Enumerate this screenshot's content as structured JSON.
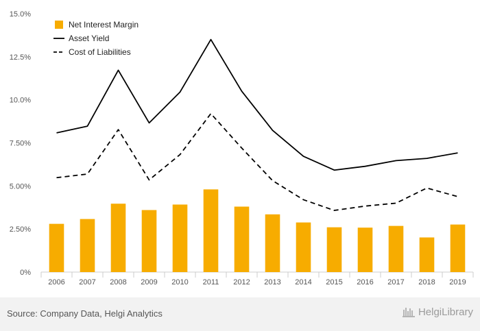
{
  "chart_data": {
    "type": "bar",
    "categories": [
      "2006",
      "2007",
      "2008",
      "2009",
      "2010",
      "2011",
      "2012",
      "2013",
      "2014",
      "2015",
      "2016",
      "2017",
      "2018",
      "2019"
    ],
    "series": [
      {
        "name": "Net Interest Margin",
        "kind": "bar",
        "color": "#f7ac00",
        "values": [
          2.8,
          3.08,
          3.97,
          3.6,
          3.92,
          4.8,
          3.8,
          3.35,
          2.88,
          2.6,
          2.58,
          2.68,
          2.01,
          2.76
        ]
      },
      {
        "name": "Asset Yield",
        "kind": "line",
        "style": "solid",
        "color": "#000000",
        "values": [
          8.08,
          8.47,
          11.72,
          8.66,
          10.45,
          13.5,
          10.5,
          8.23,
          6.72,
          5.92,
          6.14,
          6.47,
          6.6,
          6.92
        ]
      },
      {
        "name": "Cost of Liabilities",
        "kind": "line",
        "style": "dashed",
        "color": "#000000",
        "values": [
          5.48,
          5.69,
          8.27,
          5.35,
          6.82,
          9.2,
          7.2,
          5.31,
          4.2,
          3.58,
          3.83,
          4.0,
          4.88,
          4.38
        ]
      }
    ],
    "yticks": [
      "0%",
      "2.50%",
      "5.00%",
      "7.50%",
      "10.0%",
      "12.5%",
      "15.0%"
    ],
    "ytick_values": [
      0,
      2.5,
      5,
      7.5,
      10,
      12.5,
      15
    ],
    "ylim": [
      0,
      15
    ],
    "legend_position": "top-left",
    "grid": false
  },
  "footer": {
    "source": "Source: Company Data, Helgi Analytics",
    "brand": "HelgiLibrary"
  }
}
